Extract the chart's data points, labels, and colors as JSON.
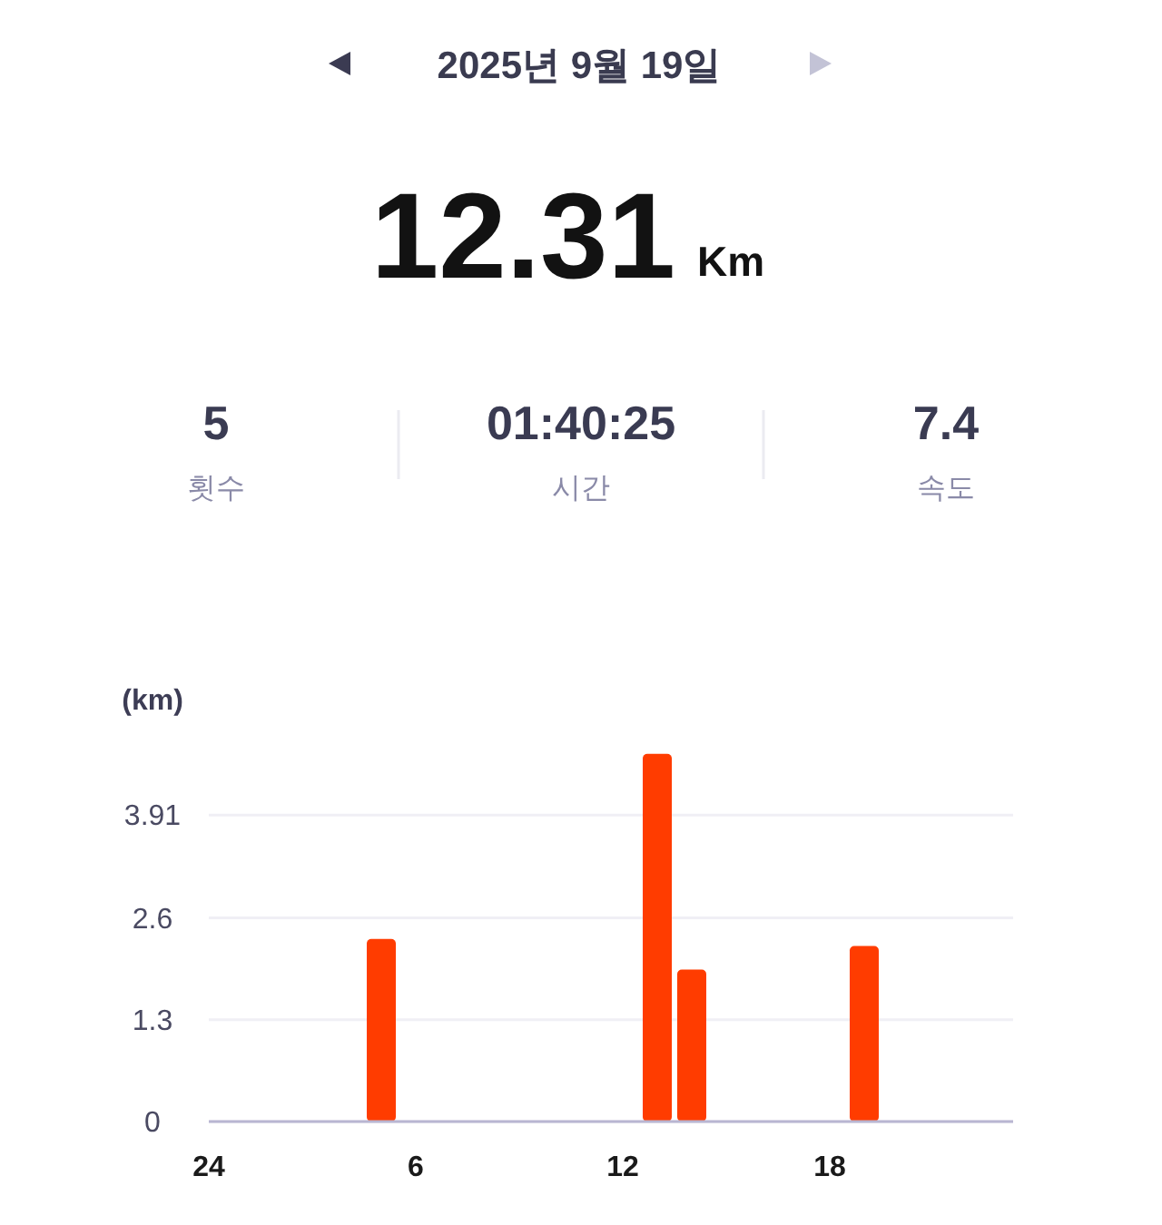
{
  "chart_data": {
    "type": "bar",
    "title": "2025년 9월 19일",
    "annotations": [
      "12.31",
      "Km",
      "5",
      "횟수",
      "01:40:25",
      "시간",
      "7.4",
      "속도"
    ],
    "ylabel": "(km)",
    "categories": [
      "24",
      null,
      null,
      null,
      null,
      null,
      "6",
      null,
      null,
      null,
      null,
      null,
      "12",
      null,
      null,
      null,
      null,
      null,
      "18",
      null,
      null,
      null,
      null,
      null
    ],
    "values": [
      null,
      null,
      null,
      null,
      null,
      2.33,
      null,
      null,
      null,
      null,
      null,
      null,
      null,
      4.69,
      1.94,
      null,
      null,
      null,
      null,
      2.24,
      null,
      null,
      null,
      null
    ],
    "color": "#ff3c00",
    "ylim": [
      0,
      4.7
    ],
    "yticks": [
      0,
      1.3,
      2.6,
      3.91
    ],
    "grid": "y"
  }
}
